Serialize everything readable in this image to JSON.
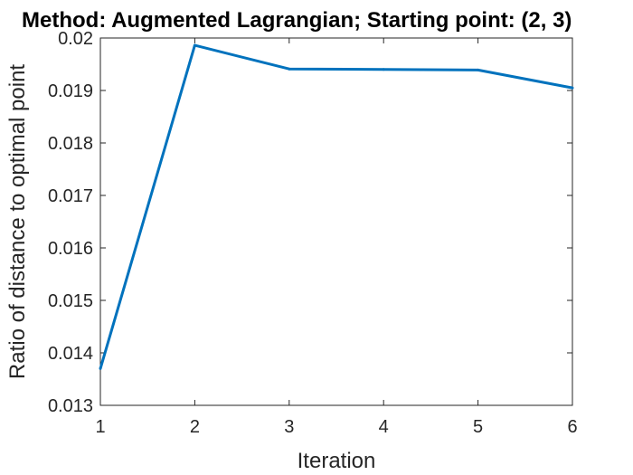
{
  "chart_data": {
    "type": "line",
    "title": "Method: Augmented Lagrangian; Starting point: (2, 3)",
    "xlabel": "Iteration",
    "ylabel": "Ratio of distance to optimal point",
    "xlim": [
      1,
      6
    ],
    "ylim": [
      0.013,
      0.02
    ],
    "xticks": [
      "1",
      "2",
      "3",
      "4",
      "5",
      "6"
    ],
    "yticks": [
      "0.013",
      "0.014",
      "0.015",
      "0.016",
      "0.017",
      "0.018",
      "0.019",
      "0.02"
    ],
    "grid": false,
    "series": [
      {
        "color": "#0072BD",
        "x": [
          1,
          2,
          3,
          4,
          5,
          6
        ],
        "y": [
          0.0137,
          0.01986,
          0.01941,
          0.0194,
          0.01939,
          0.01905
        ]
      }
    ]
  }
}
